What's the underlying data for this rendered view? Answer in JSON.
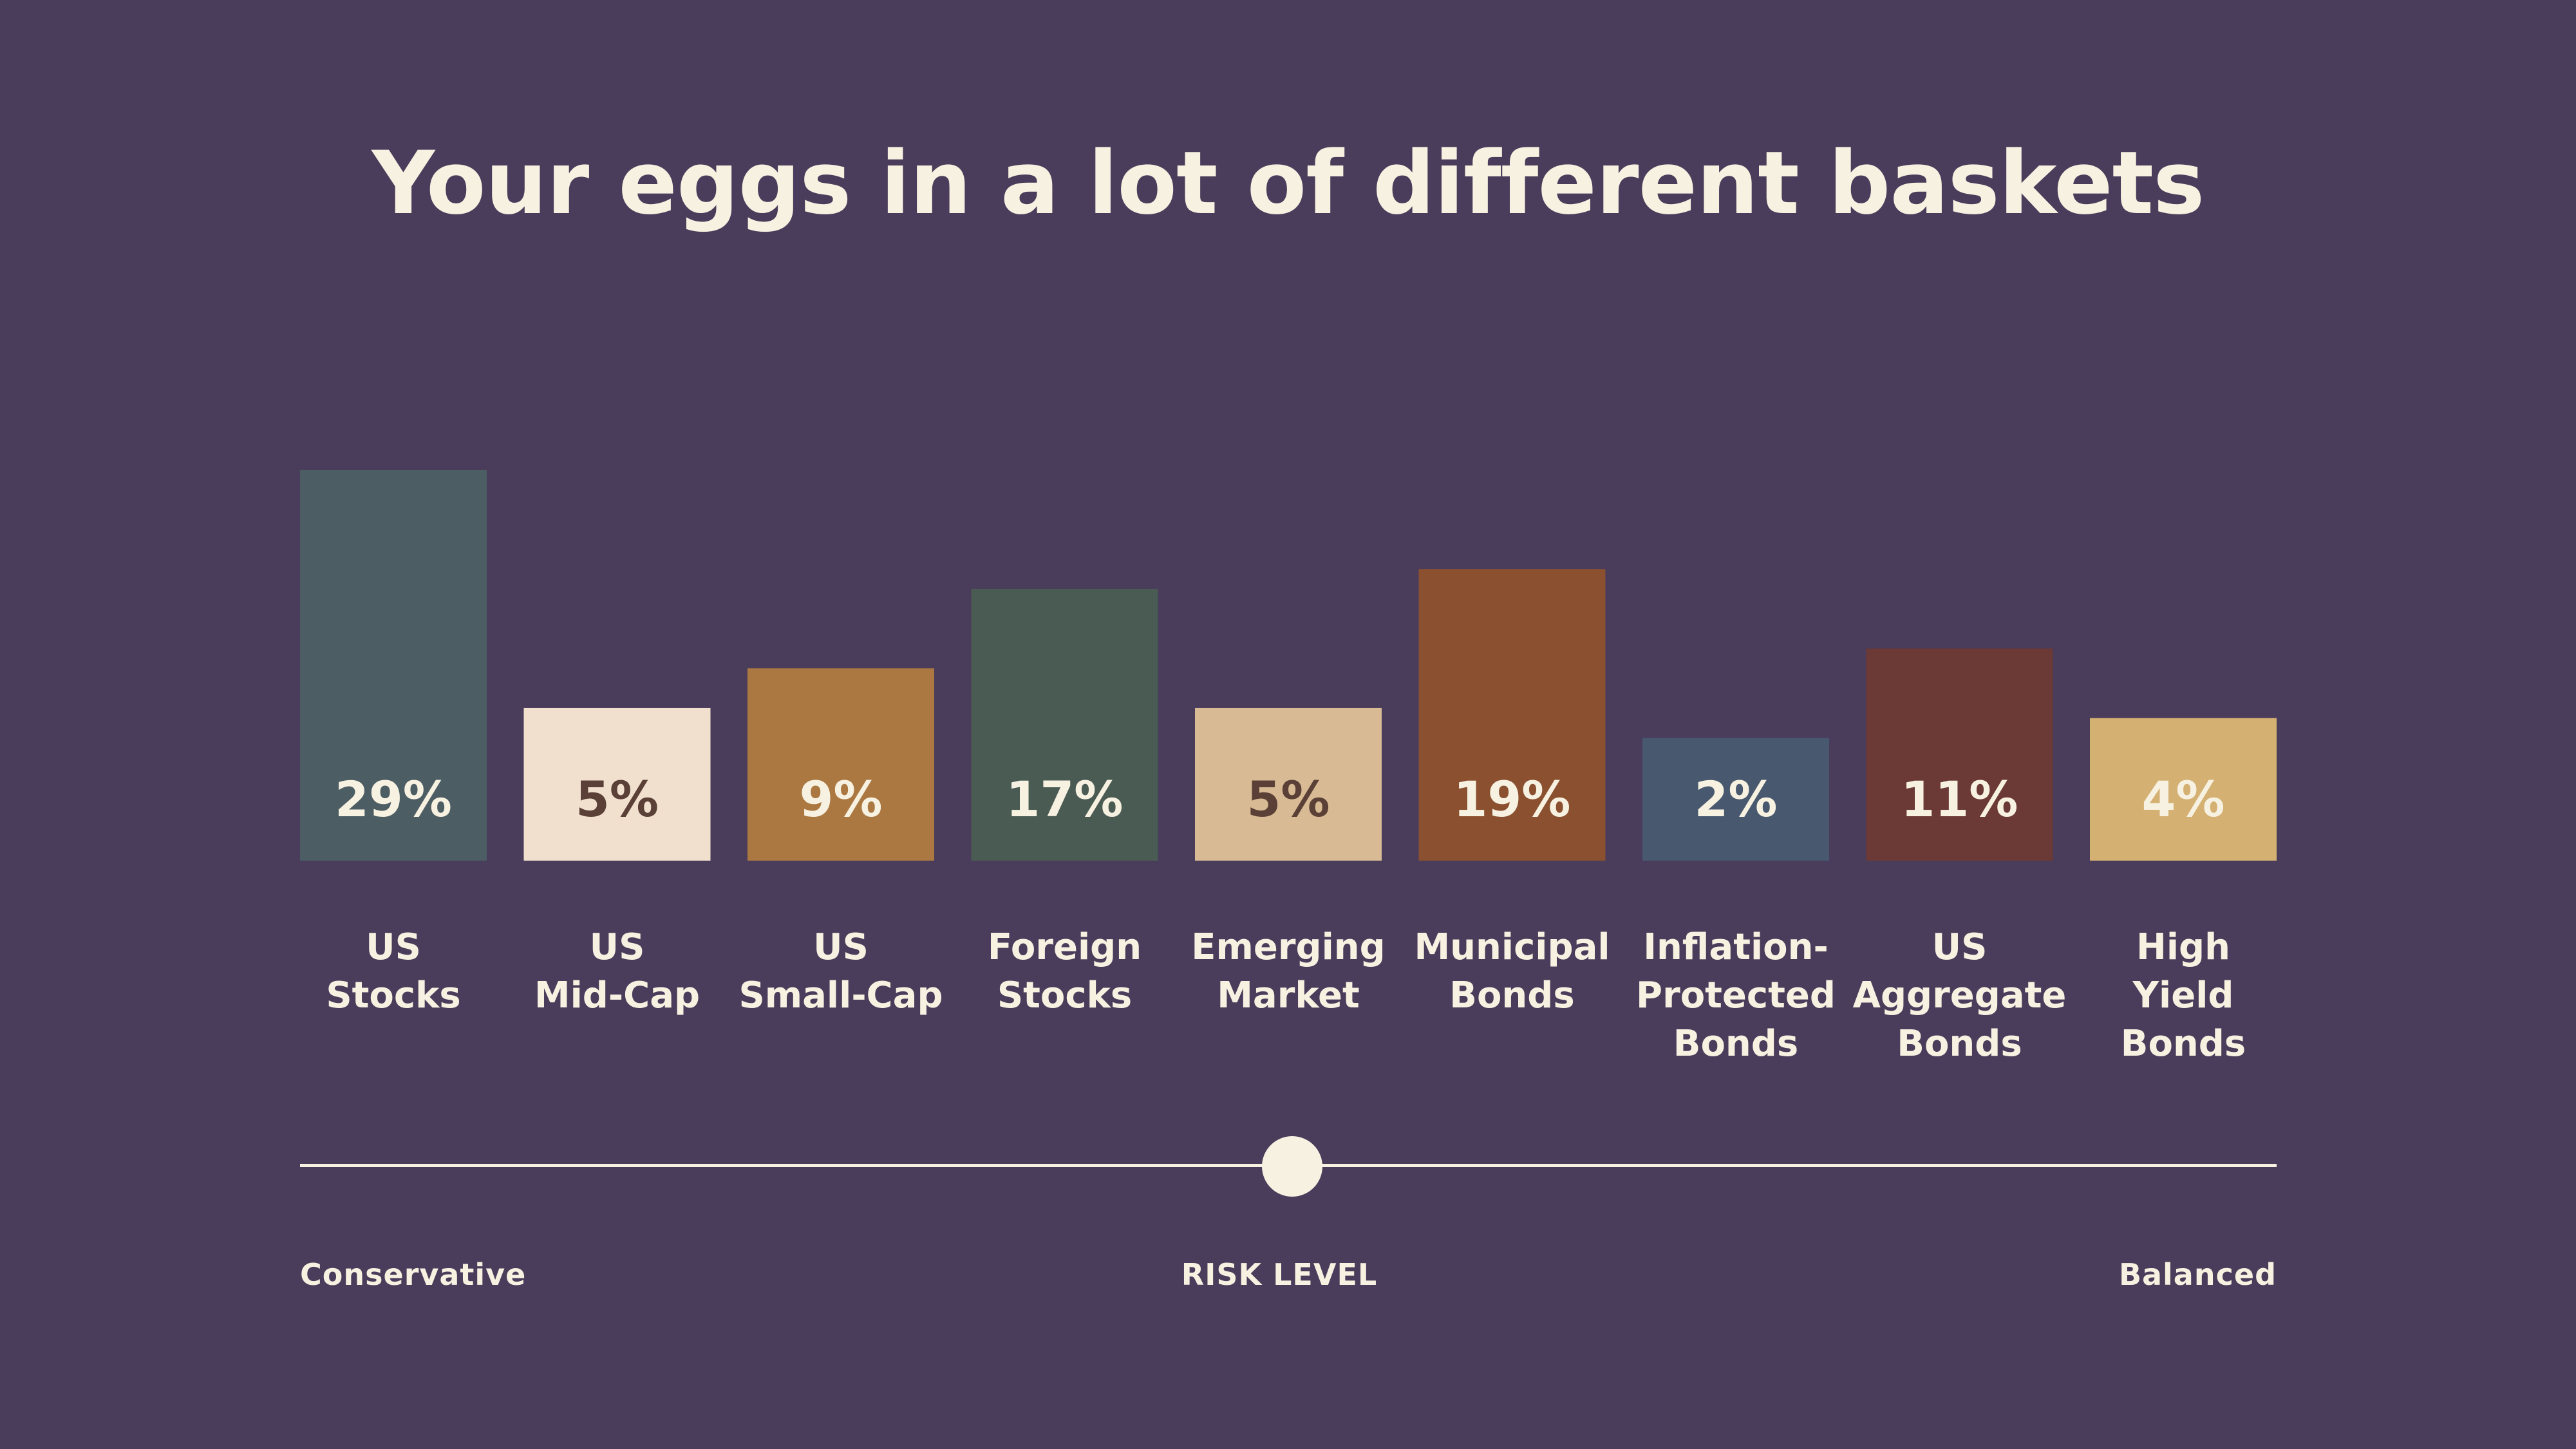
{
  "title": "Your eggs in a lot of different baskets",
  "chart_data": {
    "type": "bar",
    "categories": [
      [
        "US",
        "Stocks"
      ],
      [
        "US",
        "Mid-Cap"
      ],
      [
        "US",
        "Small-Cap"
      ],
      [
        "Foreign",
        "Stocks"
      ],
      [
        "Emerging",
        "Market"
      ],
      [
        "Municipal",
        "Bonds"
      ],
      [
        "Inflation-",
        "Protected",
        "Bonds"
      ],
      [
        "US",
        "Aggregate",
        "Bonds"
      ],
      [
        "High",
        "Yield",
        "Bonds"
      ]
    ],
    "values": [
      29,
      5,
      9,
      17,
      5,
      19,
      2,
      11,
      4
    ],
    "value_labels": [
      "29%",
      "5%",
      "9%",
      "17%",
      "5%",
      "19%",
      "2%",
      "11%",
      "4%"
    ],
    "colors": [
      "#4c5d64",
      "#f2e0cf",
      "#ab7841",
      "#4a5b54",
      "#d8bb94",
      "#8b5030",
      "#48586f",
      "#6b3936",
      "#d4b073"
    ],
    "label_colors": [
      "#f7f1e1",
      "#5a4036",
      "#f7f1e1",
      "#f7f1e1",
      "#5a4036",
      "#f7f1e1",
      "#f7f1e1",
      "#f7f1e1",
      "#f7f1e1"
    ],
    "unit": "%",
    "title": "Your eggs in a lot of different baskets",
    "xlabel": "",
    "ylabel": "",
    "grid": false,
    "legend": "none"
  },
  "risk": {
    "label": "RISK LEVEL",
    "left_label": "Conservative",
    "right_label": "Balanced",
    "level": 0.5
  }
}
